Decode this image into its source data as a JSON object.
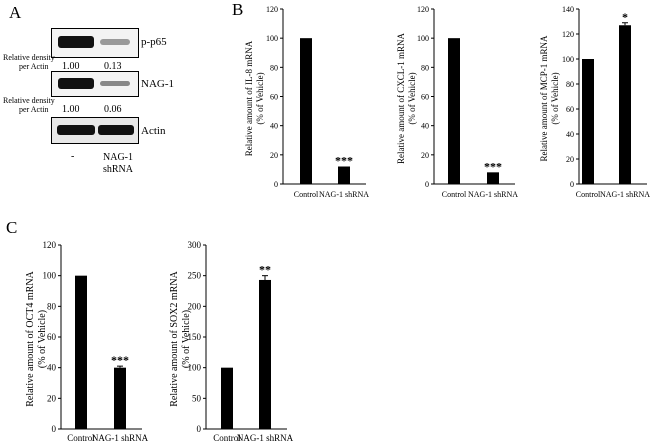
{
  "panels": {
    "a": "A",
    "b": "B",
    "c": "C"
  },
  "western_blot": {
    "bands": [
      "p-p65",
      "NAG-1",
      "Actin"
    ],
    "density_label_line1": "Relative density",
    "density_label_line2": "per Actin",
    "p65_density": [
      "1.00",
      "0.13"
    ],
    "nag1_density": [
      "1.00",
      "0.06"
    ],
    "lane1_label": "-",
    "lane2_label_line1": "NAG-1",
    "lane2_label_line2": "shRNA"
  },
  "chart_data": [
    {
      "type": "bar",
      "panel": "B",
      "categories": [
        "Control",
        "NAG-1 shRNA"
      ],
      "values": [
        100,
        12
      ],
      "significance": [
        "",
        "***"
      ],
      "ylabel_line1": "Relative amount of IL-8 mRNA",
      "ylabel_line2": "(% of Vehicle)",
      "ylim": [
        0,
        120
      ],
      "yticks": [
        0,
        20,
        40,
        60,
        80,
        100,
        120
      ]
    },
    {
      "type": "bar",
      "panel": "B",
      "categories": [
        "Control",
        "NAG-1 shRNA"
      ],
      "values": [
        100,
        8
      ],
      "significance": [
        "",
        "***"
      ],
      "ylabel_line1": "Relative amount of CXCL-1 mRNA",
      "ylabel_line2": "(% of Vehicle)",
      "ylim": [
        0,
        120
      ],
      "yticks": [
        0,
        20,
        40,
        60,
        80,
        100,
        120
      ]
    },
    {
      "type": "bar",
      "panel": "B",
      "categories": [
        "Control",
        "NAG-1 shRNA"
      ],
      "values": [
        100,
        127
      ],
      "errors": [
        0,
        2
      ],
      "significance": [
        "",
        "*"
      ],
      "ylabel_line1": "Relative amount of MCP-1 mRNA",
      "ylabel_line2": "(% of Vehicle)",
      "ylim": [
        0,
        140
      ],
      "yticks": [
        0,
        20,
        40,
        60,
        80,
        100,
        120,
        140
      ]
    },
    {
      "type": "bar",
      "panel": "C",
      "categories": [
        "Control",
        "NAG-1 shRNA"
      ],
      "values": [
        100,
        40
      ],
      "errors": [
        0,
        1
      ],
      "significance": [
        "",
        "***"
      ],
      "ylabel_line1": "Relative amount of OCT4 mRNA",
      "ylabel_line2": "(% of Vehicle)",
      "ylim": [
        0,
        120
      ],
      "yticks": [
        0,
        20,
        40,
        60,
        80,
        100,
        120
      ]
    },
    {
      "type": "bar",
      "panel": "C",
      "categories": [
        "Control",
        "NAG-1 shRNA"
      ],
      "values": [
        100,
        243
      ],
      "errors": [
        0,
        7
      ],
      "significance": [
        "",
        "**"
      ],
      "ylabel_line1": "Relative amount of SOX2 mRNA",
      "ylabel_line2": "(% of Vehicle)",
      "ylim": [
        0,
        300
      ],
      "yticks": [
        0,
        50,
        100,
        150,
        200,
        250,
        300
      ]
    }
  ]
}
